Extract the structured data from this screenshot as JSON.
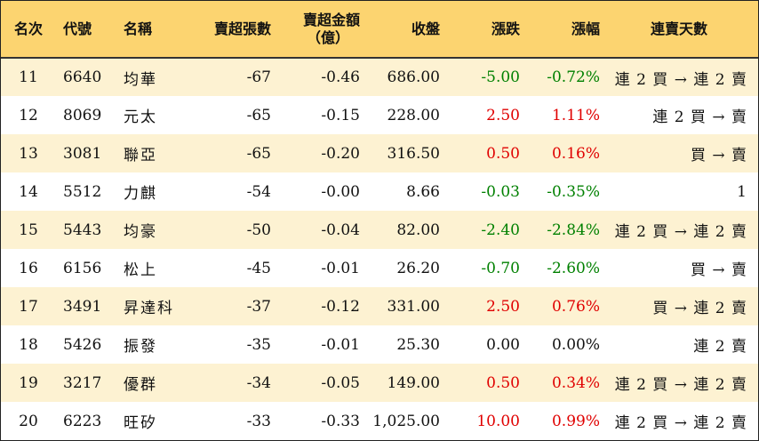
{
  "colors": {
    "header_bg": "#fcd470",
    "row_odd_bg": "#fdf2d2",
    "row_even_bg": "#ffffff",
    "up": "#e00000",
    "down": "#008000"
  },
  "headers": {
    "rank": "名次",
    "code": "代號",
    "name": "名稱",
    "net_sell_lots": "賣超張數",
    "net_sell_amount_line1": "賣超金額",
    "net_sell_amount_line2": "（億）",
    "close": "收盤",
    "change": "漲跌",
    "change_pct": "漲幅",
    "streak": "連賣天數"
  },
  "rows": [
    {
      "rank": "11",
      "code": "6640",
      "name": "均華",
      "lots": "-67",
      "amount": "-0.46",
      "close": "686.00",
      "change": "-5.00",
      "pct": "-0.72%",
      "dir": "down",
      "streak": "連 2 買 → 連 2 賣"
    },
    {
      "rank": "12",
      "code": "8069",
      "name": "元太",
      "lots": "-65",
      "amount": "-0.15",
      "close": "228.00",
      "change": "2.50",
      "pct": "1.11%",
      "dir": "up",
      "streak": "連 2 買 → 賣"
    },
    {
      "rank": "13",
      "code": "3081",
      "name": "聯亞",
      "lots": "-65",
      "amount": "-0.20",
      "close": "316.50",
      "change": "0.50",
      "pct": "0.16%",
      "dir": "up",
      "streak": "買 → 賣"
    },
    {
      "rank": "14",
      "code": "5512",
      "name": "力麒",
      "lots": "-54",
      "amount": "-0.00",
      "close": "8.66",
      "change": "-0.03",
      "pct": "-0.35%",
      "dir": "down",
      "streak": "1"
    },
    {
      "rank": "15",
      "code": "5443",
      "name": "均豪",
      "lots": "-50",
      "amount": "-0.04",
      "close": "82.00",
      "change": "-2.40",
      "pct": "-2.84%",
      "dir": "down",
      "streak": "連 2 買 → 連 2 賣"
    },
    {
      "rank": "16",
      "code": "6156",
      "name": "松上",
      "lots": "-45",
      "amount": "-0.01",
      "close": "26.20",
      "change": "-0.70",
      "pct": "-2.60%",
      "dir": "down",
      "streak": "買 → 賣"
    },
    {
      "rank": "17",
      "code": "3491",
      "name": "昇達科",
      "lots": "-37",
      "amount": "-0.12",
      "close": "331.00",
      "change": "2.50",
      "pct": "0.76%",
      "dir": "up",
      "streak": "買 → 連 2 賣"
    },
    {
      "rank": "18",
      "code": "5426",
      "name": "振發",
      "lots": "-35",
      "amount": "-0.01",
      "close": "25.30",
      "change": "0.00",
      "pct": "0.00%",
      "dir": "flat",
      "streak": "連 2 賣"
    },
    {
      "rank": "19",
      "code": "3217",
      "name": "優群",
      "lots": "-34",
      "amount": "-0.05",
      "close": "149.00",
      "change": "0.50",
      "pct": "0.34%",
      "dir": "up",
      "streak": "連 2 買 → 連 2 賣"
    },
    {
      "rank": "20",
      "code": "6223",
      "name": "旺矽",
      "lots": "-33",
      "amount": "-0.33",
      "close": "1,025.00",
      "change": "10.00",
      "pct": "0.99%",
      "dir": "up",
      "streak": "連 2 買 → 連 2 賣"
    }
  ]
}
